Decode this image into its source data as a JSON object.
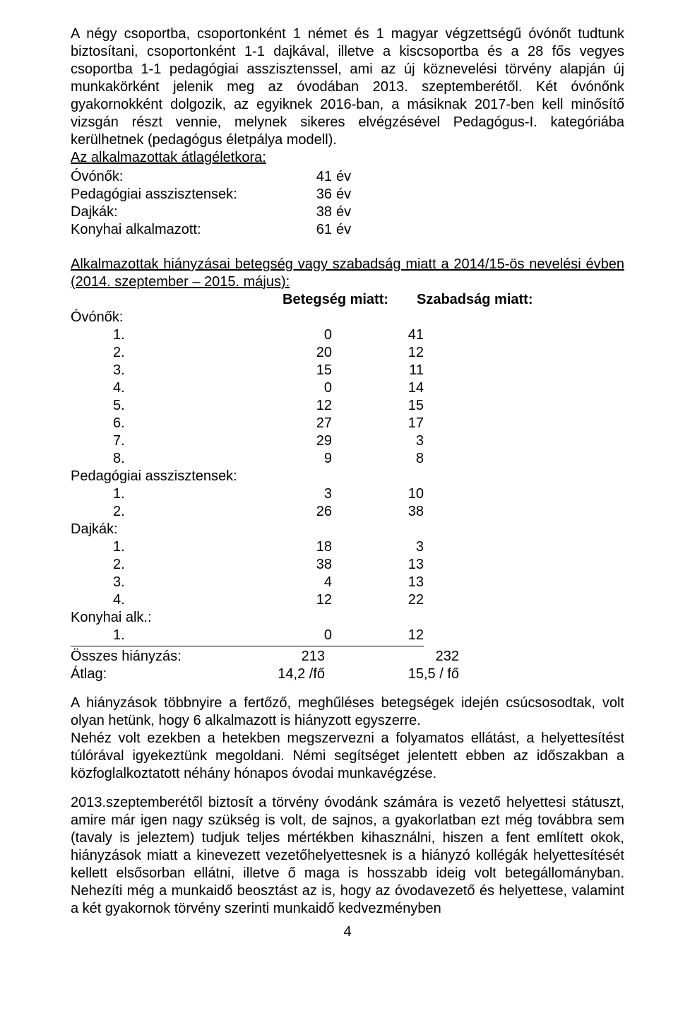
{
  "intro": {
    "p1": "A négy csoportba, csoportonként 1 német és 1 magyar végzettségű óvónőt tudtunk biztosítani, csoportonként 1-1 dajkával, illetve a kiscsoportba és a 28 fős vegyes csoportba 1-1 pedagógiai asszisztenssel, ami az új köznevelési törvény alapján új munkakörként jelenik meg az óvodában 2013. szeptemberétől. Két óvónőnk gyakornokként dolgozik, az egyiknek 2016-ban, a másiknak 2017-ben kell minősítő vizsgán részt vennie, melynek sikeres elvégzésével Pedagógus-I. kategóriába kerülhetnek (pedagógus életpálya modell).",
    "age_title": "Az alkalmazottak átlagéletkora:"
  },
  "ages": [
    {
      "label": "Óvónők:",
      "value": "41",
      "unit": "év"
    },
    {
      "label": "Pedagógiai asszisztensek:",
      "value": "36",
      "unit": "év"
    },
    {
      "label": "Dajkák:",
      "value": "38",
      "unit": "év"
    },
    {
      "label": "Konyhai alkalmazott:",
      "value": "61",
      "unit": "év"
    }
  ],
  "absence": {
    "title": "Alkalmazottak hiányzásai betegség vagy szabadság miatt a 2014/15-ös nevelési évben (2014. szeptember – 2015. május):",
    "header1": "Betegség miatt:",
    "header2": "Szabadság miatt:",
    "groups": [
      {
        "name": "Óvónők:",
        "rows": [
          {
            "n": "1.",
            "a": "0",
            "b": "41"
          },
          {
            "n": "2.",
            "a": "20",
            "b": "12"
          },
          {
            "n": "3.",
            "a": "15",
            "b": "11"
          },
          {
            "n": "4.",
            "a": "0",
            "b": "14"
          },
          {
            "n": "5.",
            "a": "12",
            "b": "15"
          },
          {
            "n": "6.",
            "a": "27",
            "b": "17"
          },
          {
            "n": "7.",
            "a": "29",
            "b": "3"
          },
          {
            "n": "8.",
            "a": "9",
            "b": "8"
          }
        ]
      },
      {
        "name": "Pedagógiai asszisztensek:",
        "rows": [
          {
            "n": "1.",
            "a": "3",
            "b": "10"
          },
          {
            "n": "2.",
            "a": "26",
            "b": "38"
          }
        ]
      },
      {
        "name": "Dajkák:",
        "rows": [
          {
            "n": "1.",
            "a": "18",
            "b": "3"
          },
          {
            "n": "2.",
            "a": "38",
            "b": "13"
          },
          {
            "n": "3.",
            "a": "4",
            "b": "13"
          },
          {
            "n": "4.",
            "a": "12",
            "b": "22"
          }
        ]
      },
      {
        "name": "Konyhai alk.:",
        "rows": [
          {
            "n": "1.",
            "a": "0",
            "b": "12"
          }
        ]
      }
    ],
    "total_label": "Összes hiányzás:",
    "total_a": "213",
    "total_b": "232",
    "avg_label": "Átlag:",
    "avg_a": "14,2 /fő",
    "avg_b": "15,5 / fő"
  },
  "closing": {
    "p1": "A hiányzások többnyire a fertőző, meghűléses betegségek idején csúcsosodtak, volt olyan hetünk, hogy 6 alkalmazott is hiányzott egyszerre.",
    "p2": "Nehéz volt ezekben a hetekben megszervezni a folyamatos ellátást, a helyettesítést túlórával igyekeztünk megoldani. Némi segítséget jelentett ebben az időszakban a közfoglalkoztatott néhány hónapos óvodai munkavégzése.",
    "p3": "2013.szeptemberétől biztosít a törvény óvodánk számára is vezető helyettesi státuszt, amire már igen nagy szükség is volt, de sajnos, a gyakorlatban ezt még továbbra sem (tavaly is jeleztem) tudjuk teljes mértékben kihasználni, hiszen a fent említett okok, hiányzások miatt a kinevezett vezetőhelyettesnek is a hiányzó kollégák helyettesítését kellett elsősorban ellátni, illetve ő maga is hosszabb ideig volt betegállományban. Nehezíti még a munkaidő beosztást az is, hogy az óvodavezető és helyettese, valamint a két gyakornok törvény szerinti munkaidő kedvezményben"
  },
  "page_number": "4"
}
